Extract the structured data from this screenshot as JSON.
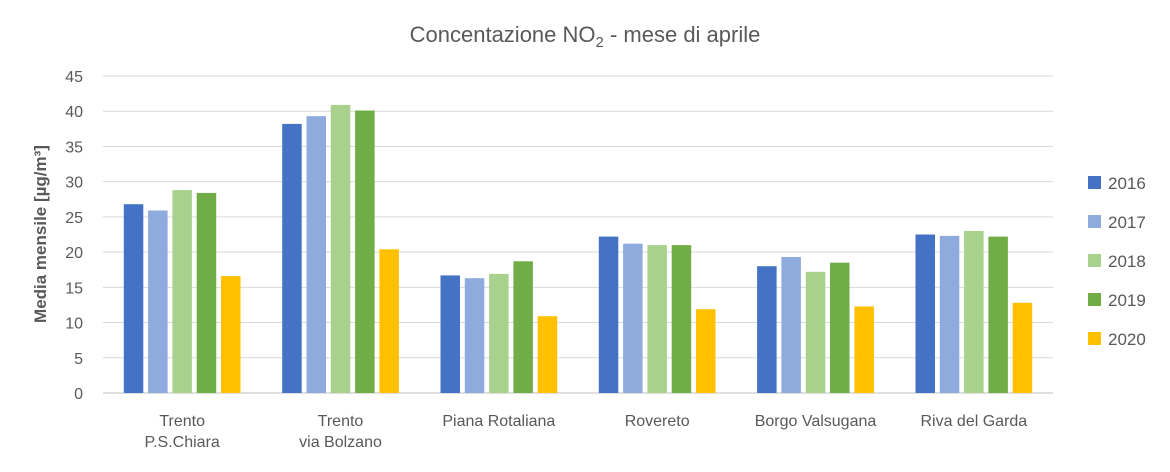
{
  "chart_data": {
    "type": "bar",
    "title": "Concentazione NO",
    "title_sub": "2",
    "title_suffix": " - mese di aprile",
    "ylabel": "Media mensile [µg/m³]",
    "xlabel": "",
    "ylim": [
      0,
      45
    ],
    "yticks": [
      0,
      5,
      10,
      15,
      20,
      25,
      30,
      35,
      40,
      45
    ],
    "grid": true,
    "legend_position": "right",
    "categories": [
      [
        "Trento",
        "P.S.Chiara"
      ],
      [
        "Trento",
        "via Bolzano"
      ],
      [
        "Piana Rotaliana"
      ],
      [
        "Rovereto"
      ],
      [
        "Borgo Valsugana"
      ],
      [
        "Riva del Garda"
      ]
    ],
    "series": [
      {
        "name": "2016",
        "color": "#4472C4",
        "values": [
          26.8,
          38.2,
          16.7,
          22.2,
          18.0,
          22.5
        ]
      },
      {
        "name": "2017",
        "color": "#8FAADC",
        "values": [
          25.9,
          39.3,
          16.3,
          21.2,
          19.3,
          22.3
        ]
      },
      {
        "name": "2018",
        "color": "#A9D18E",
        "values": [
          28.8,
          40.9,
          16.9,
          21.0,
          17.2,
          23.0
        ]
      },
      {
        "name": "2019",
        "color": "#70AD47",
        "values": [
          28.4,
          40.1,
          18.7,
          21.0,
          18.5,
          22.2
        ]
      },
      {
        "name": "2020",
        "color": "#FFC000",
        "values": [
          16.6,
          20.4,
          10.9,
          11.9,
          12.3,
          12.8
        ]
      }
    ]
  }
}
